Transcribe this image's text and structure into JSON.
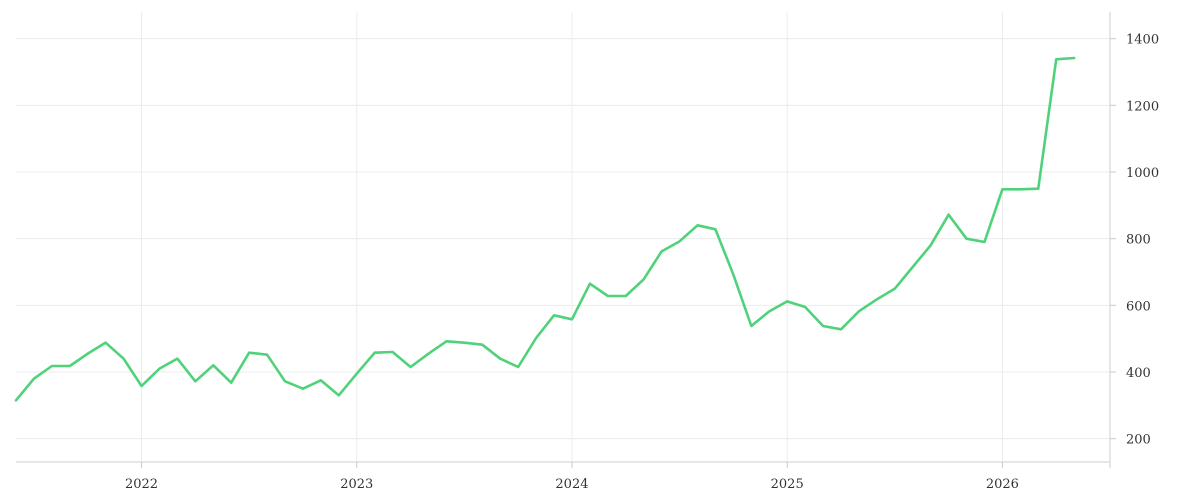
{
  "chart_data": {
    "type": "line",
    "title": "",
    "xlabel": "",
    "ylabel": "",
    "x_tick_labels": [
      "2022",
      "2023",
      "2024",
      "2025",
      "2026"
    ],
    "y_ticks": [
      200,
      400,
      600,
      800,
      1000,
      1200,
      1400
    ],
    "ylim": [
      130,
      1480
    ],
    "xlim": [
      "2021-06",
      "2026-07"
    ],
    "grid": true,
    "y_axis_position": "right",
    "series": [
      {
        "color": "#4fd27a",
        "x": [
          "2021-06",
          "2021-07",
          "2021-08",
          "2021-09",
          "2021-10",
          "2021-11",
          "2021-12",
          "2022-01",
          "2022-02",
          "2022-03",
          "2022-04",
          "2022-05",
          "2022-06",
          "2022-07",
          "2022-08",
          "2022-09",
          "2022-10",
          "2022-11",
          "2022-12",
          "2023-01",
          "2023-02",
          "2023-03",
          "2023-04",
          "2023-05",
          "2023-06",
          "2023-07",
          "2023-08",
          "2023-09",
          "2023-10",
          "2023-11",
          "2023-12",
          "2024-01",
          "2024-02",
          "2024-03",
          "2024-04",
          "2024-05",
          "2024-06",
          "2024-07",
          "2024-08",
          "2024-09",
          "2024-10",
          "2024-11",
          "2024-12",
          "2025-01",
          "2025-02",
          "2025-03",
          "2025-04",
          "2025-05",
          "2025-06",
          "2025-07",
          "2025-08",
          "2025-09",
          "2025-10",
          "2025-11",
          "2025-12",
          "2026-01",
          "2026-02",
          "2026-03",
          "2026-04",
          "2026-05"
        ],
        "values": [
          315,
          380,
          418,
          418,
          455,
          488,
          440,
          358,
          410,
          440,
          372,
          420,
          368,
          458,
          452,
          372,
          350,
          375,
          330,
          395,
          458,
          460,
          415,
          455,
          492,
          488,
          482,
          440,
          415,
          502,
          570,
          558,
          665,
          628,
          628,
          678,
          762,
          792,
          840,
          828,
          692,
          538,
          582,
          612,
          595,
          538,
          528,
          582,
          618,
          650,
          715,
          780,
          872,
          800,
          790,
          948,
          948,
          950,
          1338,
          1342
        ]
      }
    ]
  }
}
